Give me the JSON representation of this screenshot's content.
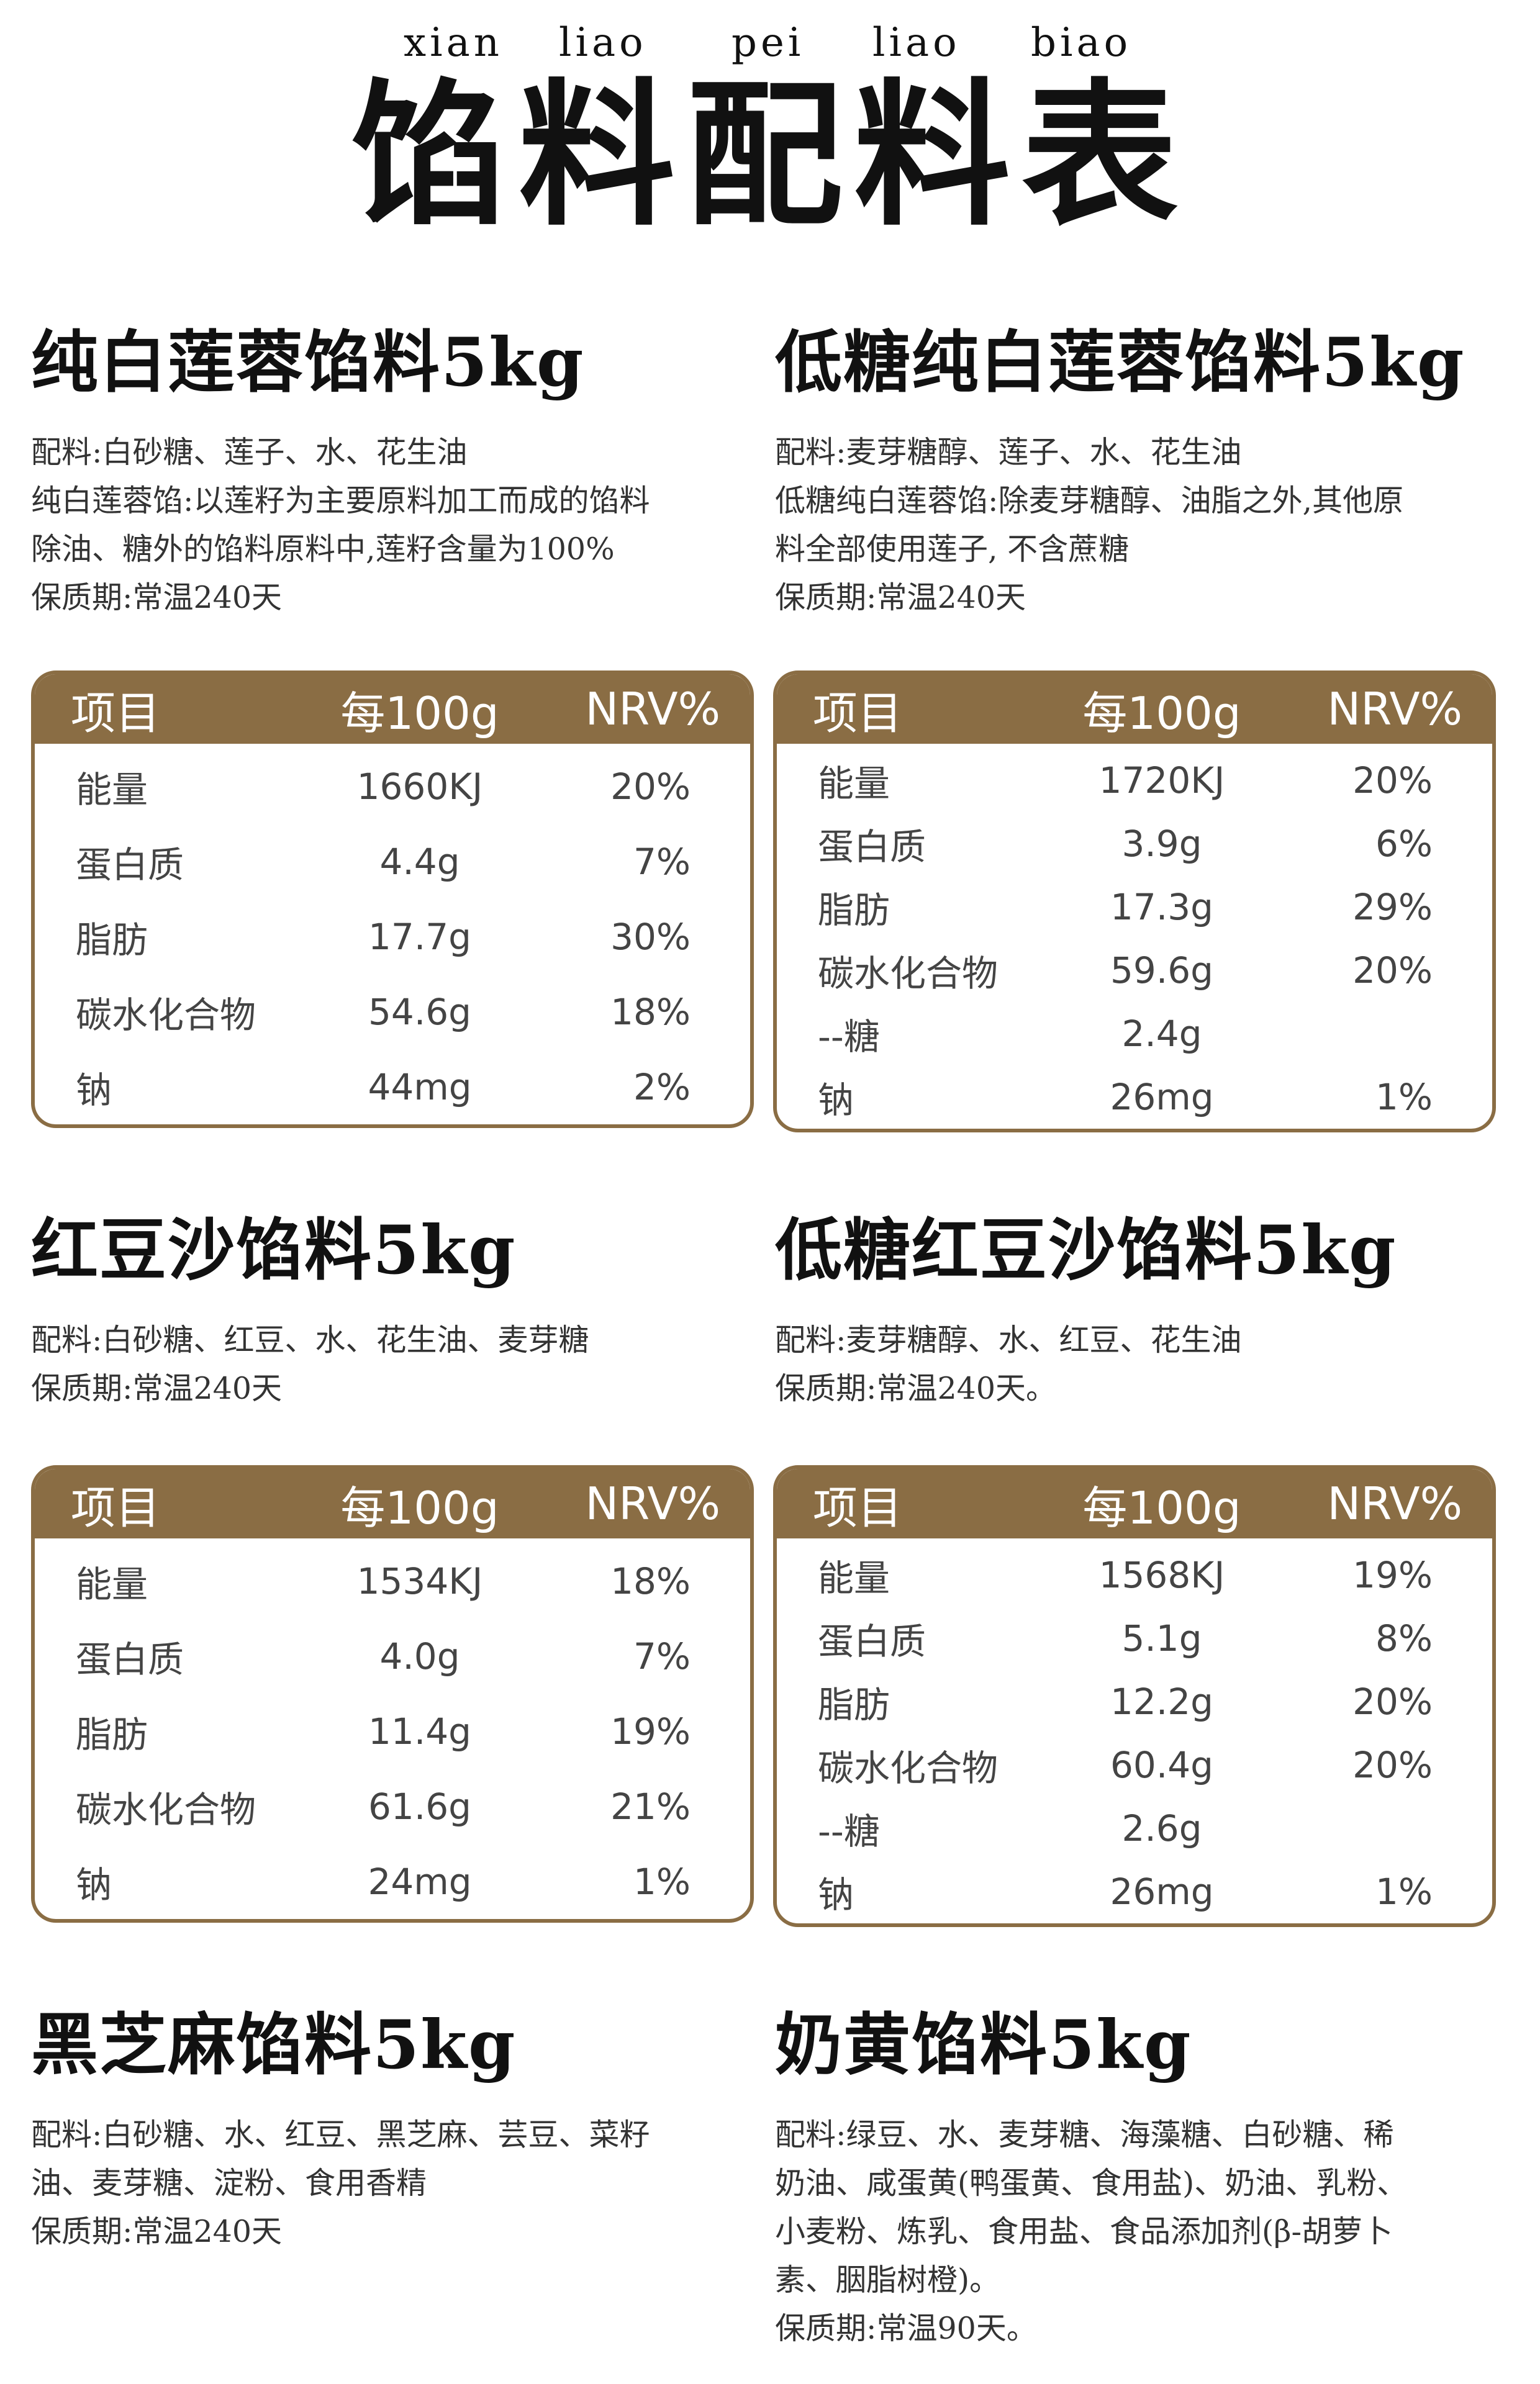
{
  "header": {
    "pinyin": [
      "xian",
      "liao",
      "pei",
      "liao",
      "biao"
    ],
    "title": "馅料配料表"
  },
  "table_headers": {
    "item": "项目",
    "per100g": "每100g",
    "nrv": "NRV%"
  },
  "products": [
    {
      "title": "纯白莲蓉馅料5kg",
      "desc": [
        "配料:白砂糖、莲子、水、花生油",
        "纯白莲蓉馅:以莲籽为主要原料加工而成的馅料",
        "除油、糖外的馅料原料中,莲籽含量为100%",
        "保质期:常温240天"
      ],
      "nutrition": [
        {
          "item": "能量",
          "value": "1660KJ",
          "nrv": "20%"
        },
        {
          "item": "蛋白质",
          "value": "4.4g",
          "nrv": "7%"
        },
        {
          "item": "脂肪",
          "value": "17.7g",
          "nrv": "30%"
        },
        {
          "item": "碳水化合物",
          "value": "54.6g",
          "nrv": "18%"
        },
        {
          "item": "钠",
          "value": "44mg",
          "nrv": "2%"
        }
      ]
    },
    {
      "title": "低糖纯白莲蓉馅料5kg",
      "desc": [
        "配料:麦芽糖醇、莲子、水、花生油",
        "低糖纯白莲蓉馅:除麦芽糖醇、油脂之外,其他原",
        "料全部使用莲子, 不含蔗糖",
        "保质期:常温240天"
      ],
      "nutrition": [
        {
          "item": "能量",
          "value": "1720KJ",
          "nrv": "20%"
        },
        {
          "item": "蛋白质",
          "value": "3.9g",
          "nrv": "6%"
        },
        {
          "item": "脂肪",
          "value": "17.3g",
          "nrv": "29%"
        },
        {
          "item": "碳水化合物",
          "value": "59.6g",
          "nrv": "20%"
        },
        {
          "item": "--糖",
          "value": "2.4g",
          "nrv": ""
        },
        {
          "item": "钠",
          "value": "26mg",
          "nrv": "1%"
        }
      ]
    },
    {
      "title": "红豆沙馅料5kg",
      "desc": [
        "配料:白砂糖、红豆、水、花生油、麦芽糖",
        "保质期:常温240天"
      ],
      "nutrition": [
        {
          "item": "能量",
          "value": "1534KJ",
          "nrv": "18%"
        },
        {
          "item": "蛋白质",
          "value": "4.0g",
          "nrv": "7%"
        },
        {
          "item": "脂肪",
          "value": "11.4g",
          "nrv": "19%"
        },
        {
          "item": "碳水化合物",
          "value": "61.6g",
          "nrv": "21%"
        },
        {
          "item": "钠",
          "value": "24mg",
          "nrv": "1%"
        }
      ]
    },
    {
      "title": "低糖红豆沙馅料5kg",
      "desc": [
        "配料:麦芽糖醇、水、红豆、花生油",
        "保质期:常温240天。"
      ],
      "nutrition": [
        {
          "item": "能量",
          "value": "1568KJ",
          "nrv": "19%"
        },
        {
          "item": "蛋白质",
          "value": "5.1g",
          "nrv": "8%"
        },
        {
          "item": "脂肪",
          "value": "12.2g",
          "nrv": "20%"
        },
        {
          "item": "碳水化合物",
          "value": "60.4g",
          "nrv": "20%"
        },
        {
          "item": "--糖",
          "value": "2.6g",
          "nrv": ""
        },
        {
          "item": "钠",
          "value": "26mg",
          "nrv": "1%"
        }
      ]
    },
    {
      "title": "黑芝麻馅料5kg",
      "desc": [
        "配料:白砂糖、水、红豆、黑芝麻、芸豆、菜籽",
        "油、麦芽糖、淀粉、食用香精",
        "保质期:常温240天"
      ]
    },
    {
      "title": "奶黄馅料5kg",
      "desc": [
        "配料:绿豆、水、麦芽糖、海藻糖、白砂糖、稀",
        "奶油、咸蛋黄(鸭蛋黄、食用盐)、奶油、乳粉、",
        "小麦粉、炼乳、食用盐、食品添加剂(β-胡萝卜",
        "素、胭脂树橙)。",
        "保质期:常温90天。"
      ]
    }
  ]
}
